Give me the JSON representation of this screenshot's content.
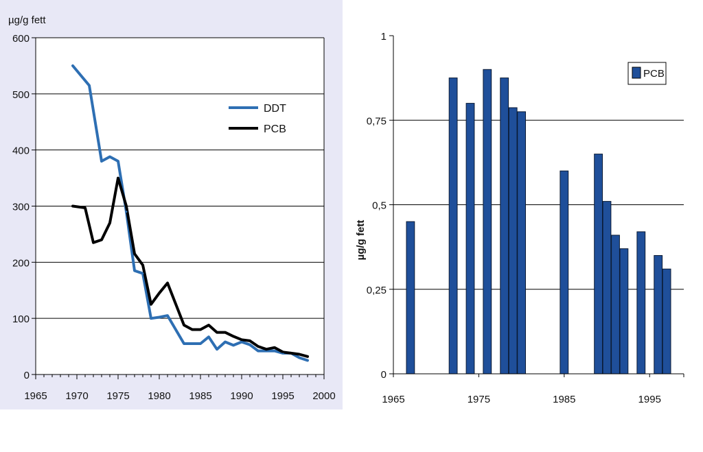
{
  "chart_data": [
    {
      "type": "line",
      "ylabel": "µg/g fett",
      "xlim": [
        1965,
        2000
      ],
      "ylim": [
        0,
        600
      ],
      "x_ticks": [
        1965,
        1970,
        1975,
        1980,
        1985,
        1990,
        1995,
        2000
      ],
      "y_ticks": [
        0,
        100,
        200,
        300,
        400,
        500,
        600
      ],
      "grid": "horizontal",
      "legend": "top-right",
      "series": [
        {
          "name": "DDT",
          "color": "#2e6fb3",
          "x": [
            1969.5,
            1971.5,
            1973,
            1974,
            1975,
            1976,
            1977,
            1978,
            1979,
            1980,
            1981,
            1983,
            1985,
            1986,
            1987,
            1988,
            1989,
            1990,
            1991,
            1992,
            1994,
            1995,
            1996,
            1997,
            1998
          ],
          "y": [
            550,
            515,
            380,
            388,
            380,
            290,
            185,
            180,
            100,
            102,
            105,
            55,
            55,
            67,
            45,
            58,
            52,
            58,
            53,
            42,
            42,
            38,
            38,
            30,
            25
          ]
        },
        {
          "name": "PCB",
          "color": "#000000",
          "x": [
            1969.5,
            1971,
            1972,
            1973,
            1974,
            1975,
            1976,
            1977,
            1978,
            1979,
            1980,
            1981,
            1983,
            1984,
            1985,
            1986,
            1987,
            1988,
            1989,
            1990,
            1991,
            1992,
            1993,
            1994,
            1995,
            1996,
            1997,
            1998
          ],
          "y": [
            300,
            297,
            235,
            240,
            270,
            350,
            300,
            215,
            195,
            125,
            145,
            163,
            88,
            80,
            80,
            88,
            75,
            75,
            68,
            62,
            60,
            50,
            45,
            48,
            40,
            38,
            36,
            32
          ]
        }
      ]
    },
    {
      "type": "bar",
      "ylabel": "µg/g fett",
      "xlim": [
        1965,
        1999
      ],
      "ylim": [
        0,
        1
      ],
      "x_ticks": [
        1965,
        1975,
        1985,
        1995
      ],
      "y_ticks": [
        0,
        0.25,
        0.5,
        0.75,
        1
      ],
      "y_tick_labels": [
        "0",
        "0,25",
        "0,5",
        "0,75",
        "1"
      ],
      "grid": "horizontal",
      "legend": "top-right",
      "series": [
        {
          "name": "PCB",
          "color": "#1f4f9a",
          "x": [
            1967,
            1972,
            1974,
            1976,
            1978,
            1979,
            1980,
            1985,
            1989,
            1990,
            1991,
            1992,
            1994,
            1996,
            1997
          ],
          "values": [
            0.45,
            0.875,
            0.8,
            0.9,
            0.875,
            0.787,
            0.775,
            0.6,
            0.65,
            0.51,
            0.41,
            0.37,
            0.42,
            0.35,
            0.31
          ]
        }
      ]
    }
  ]
}
